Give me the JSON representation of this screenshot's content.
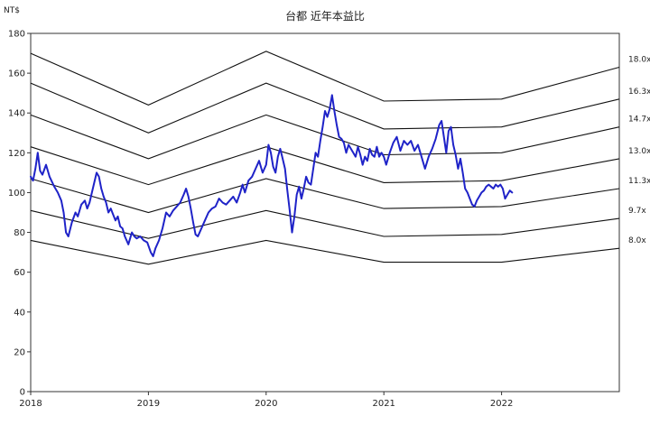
{
  "chart_data": {
    "type": "line",
    "title": "台都 近年本益比",
    "unit_label": "NT$",
    "xlim": [
      2018,
      2023
    ],
    "ylim": [
      0,
      180
    ],
    "x_ticks": [
      2018,
      2019,
      2020,
      2021,
      2022
    ],
    "y_ticks": [
      0,
      20,
      40,
      60,
      80,
      100,
      120,
      140,
      160,
      180
    ],
    "grid": false,
    "pe_bands": [
      {
        "label": "18.0x",
        "points": [
          [
            2018.0,
            170
          ],
          [
            2019.0,
            144
          ],
          [
            2020.0,
            171
          ],
          [
            2021.0,
            146
          ],
          [
            2022.0,
            147
          ],
          [
            2023.0,
            163
          ]
        ]
      },
      {
        "label": "16.3x",
        "points": [
          [
            2018.0,
            155
          ],
          [
            2019.0,
            130
          ],
          [
            2020.0,
            155
          ],
          [
            2021.0,
            132
          ],
          [
            2022.0,
            133
          ],
          [
            2023.0,
            147
          ]
        ]
      },
      {
        "label": "14.7x",
        "points": [
          [
            2018.0,
            139
          ],
          [
            2019.0,
            117
          ],
          [
            2020.0,
            139
          ],
          [
            2021.0,
            119
          ],
          [
            2022.0,
            120
          ],
          [
            2023.0,
            133
          ]
        ]
      },
      {
        "label": "13.0x",
        "points": [
          [
            2018.0,
            123
          ],
          [
            2019.0,
            104
          ],
          [
            2020.0,
            123
          ],
          [
            2021.0,
            105
          ],
          [
            2022.0,
            106
          ],
          [
            2023.0,
            117
          ]
        ]
      },
      {
        "label": "11.3x",
        "points": [
          [
            2018.0,
            107
          ],
          [
            2019.0,
            90
          ],
          [
            2020.0,
            107
          ],
          [
            2021.0,
            92
          ],
          [
            2022.0,
            93
          ],
          [
            2023.0,
            102
          ]
        ]
      },
      {
        "label": "9.7x",
        "points": [
          [
            2018.0,
            91
          ],
          [
            2019.0,
            77
          ],
          [
            2020.0,
            91
          ],
          [
            2021.0,
            78
          ],
          [
            2022.0,
            79
          ],
          [
            2023.0,
            87
          ]
        ]
      },
      {
        "label": "8.0x",
        "points": [
          [
            2018.0,
            76
          ],
          [
            2019.0,
            64
          ],
          [
            2020.0,
            76
          ],
          [
            2021.0,
            65
          ],
          [
            2022.0,
            65
          ],
          [
            2023.0,
            72
          ]
        ]
      }
    ],
    "price_series": {
      "color": "#1f23c8",
      "points": [
        [
          2018.0,
          108
        ],
        [
          2018.02,
          106
        ],
        [
          2018.04,
          112
        ],
        [
          2018.06,
          120
        ],
        [
          2018.08,
          111
        ],
        [
          2018.1,
          109
        ],
        [
          2018.13,
          114
        ],
        [
          2018.16,
          108
        ],
        [
          2018.2,
          103
        ],
        [
          2018.23,
          100
        ],
        [
          2018.26,
          96
        ],
        [
          2018.28,
          90
        ],
        [
          2018.3,
          80
        ],
        [
          2018.32,
          78
        ],
        [
          2018.35,
          85
        ],
        [
          2018.38,
          90
        ],
        [
          2018.4,
          88
        ],
        [
          2018.43,
          94
        ],
        [
          2018.46,
          96
        ],
        [
          2018.48,
          92
        ],
        [
          2018.5,
          95
        ],
        [
          2018.52,
          100
        ],
        [
          2018.54,
          105
        ],
        [
          2018.56,
          110
        ],
        [
          2018.58,
          108
        ],
        [
          2018.6,
          102
        ],
        [
          2018.62,
          98
        ],
        [
          2018.64,
          95
        ],
        [
          2018.66,
          90
        ],
        [
          2018.68,
          92
        ],
        [
          2018.7,
          89
        ],
        [
          2018.72,
          86
        ],
        [
          2018.74,
          88
        ],
        [
          2018.76,
          83
        ],
        [
          2018.78,
          82
        ],
        [
          2018.8,
          78
        ],
        [
          2018.83,
          74
        ],
        [
          2018.86,
          80
        ],
        [
          2018.88,
          78
        ],
        [
          2018.9,
          77
        ],
        [
          2018.93,
          78
        ],
        [
          2018.96,
          76
        ],
        [
          2018.99,
          75
        ],
        [
          2019.02,
          70
        ],
        [
          2019.04,
          68
        ],
        [
          2019.06,
          72
        ],
        [
          2019.09,
          76
        ],
        [
          2019.12,
          82
        ],
        [
          2019.15,
          90
        ],
        [
          2019.18,
          88
        ],
        [
          2019.21,
          91
        ],
        [
          2019.24,
          93
        ],
        [
          2019.27,
          95
        ],
        [
          2019.3,
          99
        ],
        [
          2019.32,
          102
        ],
        [
          2019.34,
          98
        ],
        [
          2019.36,
          92
        ],
        [
          2019.38,
          85
        ],
        [
          2019.4,
          79
        ],
        [
          2019.42,
          78
        ],
        [
          2019.45,
          82
        ],
        [
          2019.48,
          86
        ],
        [
          2019.51,
          90
        ],
        [
          2019.54,
          92
        ],
        [
          2019.57,
          93
        ],
        [
          2019.6,
          97
        ],
        [
          2019.63,
          95
        ],
        [
          2019.66,
          94
        ],
        [
          2019.69,
          96
        ],
        [
          2019.72,
          98
        ],
        [
          2019.75,
          95
        ],
        [
          2019.78,
          100
        ],
        [
          2019.8,
          104
        ],
        [
          2019.82,
          100
        ],
        [
          2019.85,
          106
        ],
        [
          2019.88,
          108
        ],
        [
          2019.91,
          112
        ],
        [
          2019.94,
          116
        ],
        [
          2019.97,
          110
        ],
        [
          2020.0,
          114
        ],
        [
          2020.02,
          124
        ],
        [
          2020.04,
          120
        ],
        [
          2020.06,
          113
        ],
        [
          2020.08,
          110
        ],
        [
          2020.1,
          118
        ],
        [
          2020.12,
          122
        ],
        [
          2020.14,
          117
        ],
        [
          2020.16,
          112
        ],
        [
          2020.18,
          101
        ],
        [
          2020.2,
          91
        ],
        [
          2020.22,
          80
        ],
        [
          2020.24,
          88
        ],
        [
          2020.26,
          99
        ],
        [
          2020.28,
          103
        ],
        [
          2020.3,
          97
        ],
        [
          2020.32,
          102
        ],
        [
          2020.34,
          108
        ],
        [
          2020.36,
          105
        ],
        [
          2020.38,
          104
        ],
        [
          2020.4,
          112
        ],
        [
          2020.42,
          120
        ],
        [
          2020.44,
          118
        ],
        [
          2020.46,
          126
        ],
        [
          2020.48,
          133
        ],
        [
          2020.5,
          141
        ],
        [
          2020.52,
          138
        ],
        [
          2020.54,
          142
        ],
        [
          2020.56,
          149
        ],
        [
          2020.58,
          141
        ],
        [
          2020.6,
          134
        ],
        [
          2020.62,
          128
        ],
        [
          2020.64,
          127
        ],
        [
          2020.66,
          125
        ],
        [
          2020.68,
          120
        ],
        [
          2020.7,
          124
        ],
        [
          2020.72,
          122
        ],
        [
          2020.74,
          120
        ],
        [
          2020.76,
          118
        ],
        [
          2020.78,
          123
        ],
        [
          2020.8,
          119
        ],
        [
          2020.82,
          114
        ],
        [
          2020.84,
          118
        ],
        [
          2020.86,
          116
        ],
        [
          2020.88,
          122
        ],
        [
          2020.9,
          119
        ],
        [
          2020.92,
          118
        ],
        [
          2020.94,
          123
        ],
        [
          2020.96,
          118
        ],
        [
          2020.98,
          120
        ],
        [
          2021.0,
          118
        ],
        [
          2021.02,
          114
        ],
        [
          2021.05,
          120
        ],
        [
          2021.08,
          125
        ],
        [
          2021.11,
          128
        ],
        [
          2021.14,
          121
        ],
        [
          2021.17,
          126
        ],
        [
          2021.2,
          124
        ],
        [
          2021.23,
          126
        ],
        [
          2021.26,
          121
        ],
        [
          2021.29,
          124
        ],
        [
          2021.32,
          118
        ],
        [
          2021.35,
          112
        ],
        [
          2021.38,
          118
        ],
        [
          2021.41,
          122
        ],
        [
          2021.44,
          127
        ],
        [
          2021.47,
          134
        ],
        [
          2021.49,
          136
        ],
        [
          2021.51,
          128
        ],
        [
          2021.53,
          120
        ],
        [
          2021.55,
          131
        ],
        [
          2021.57,
          133
        ],
        [
          2021.59,
          124
        ],
        [
          2021.61,
          119
        ],
        [
          2021.63,
          112
        ],
        [
          2021.65,
          117
        ],
        [
          2021.67,
          110
        ],
        [
          2021.69,
          102
        ],
        [
          2021.71,
          100
        ],
        [
          2021.73,
          97
        ],
        [
          2021.75,
          94
        ],
        [
          2021.77,
          93
        ],
        [
          2021.79,
          96
        ],
        [
          2021.81,
          98
        ],
        [
          2021.83,
          100
        ],
        [
          2021.85,
          101
        ],
        [
          2021.87,
          103
        ],
        [
          2021.89,
          104
        ],
        [
          2021.91,
          103
        ],
        [
          2021.93,
          102
        ],
        [
          2021.95,
          104
        ],
        [
          2021.97,
          103
        ],
        [
          2021.99,
          104
        ],
        [
          2022.01,
          102
        ],
        [
          2022.03,
          97
        ],
        [
          2022.05,
          99
        ],
        [
          2022.07,
          101
        ],
        [
          2022.09,
          100
        ]
      ]
    }
  }
}
